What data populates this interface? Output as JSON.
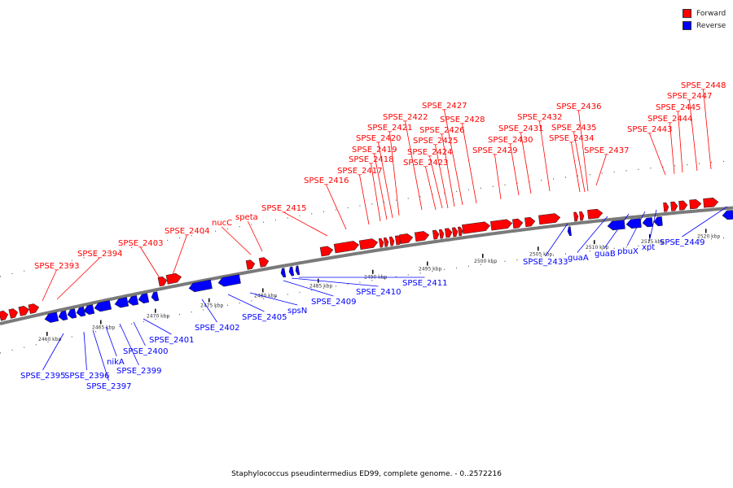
{
  "legend": {
    "forward_label": "Forward",
    "reverse_label": "Reverse",
    "forward_color": "#ff0000",
    "reverse_color": "#0000ff"
  },
  "footer": {
    "caption": "Staphylococcus pseudintermedius ED99, complete genome. - 0..2572216"
  },
  "map": {
    "range_start_kbp": 2450,
    "range_end_kbp": 2525,
    "ticks_kbp": [
      "2460 kbp",
      "2465 kbp",
      "2470 kbp",
      "2475 kbp",
      "2480 kbp",
      "2485 kbp",
      "2490 kbp",
      "2495 kbp",
      "2500 kbp",
      "2505 kbp",
      "2510 kbp",
      "2515 kbp",
      "2520 kbp"
    ]
  },
  "forward_genes": [
    "SPSE_2393",
    "SPSE_2394",
    "SPSE_2403",
    "SPSE_2404",
    "nucC",
    "speta",
    "SPSE_2415",
    "SPSE_2416",
    "SPSE_2417",
    "SPSE_2418",
    "SPSE_2419",
    "SPSE_2420",
    "SPSE_2421",
    "SPSE_2422",
    "SPSE_2423",
    "SPSE_2424",
    "SPSE_2425",
    "SPSE_2426",
    "SPSE_2427",
    "SPSE_2428",
    "SPSE_2429",
    "SPSE_2430",
    "SPSE_2431",
    "SPSE_2432",
    "SPSE_2434",
    "SPSE_2435",
    "SPSE_2436",
    "SPSE_2437",
    "SPSE_2443",
    "SPSE_2444",
    "SPSE_2445",
    "SPSE_2447",
    "SPSE_2448"
  ],
  "reverse_genes": [
    "SPSE_2395",
    "SPSE_2396",
    "SPSE_2397",
    "nikA",
    "SPSE_2399",
    "SPSE_2400",
    "SPSE_2401",
    "SPSE_2402",
    "SPSE_2405",
    "spsN",
    "SPSE_2409",
    "SPSE_2410",
    "SPSE_2411",
    "SPSE_2433",
    "guaA",
    "guaB",
    "pbuX",
    "xpt",
    "SPSE_2449"
  ]
}
